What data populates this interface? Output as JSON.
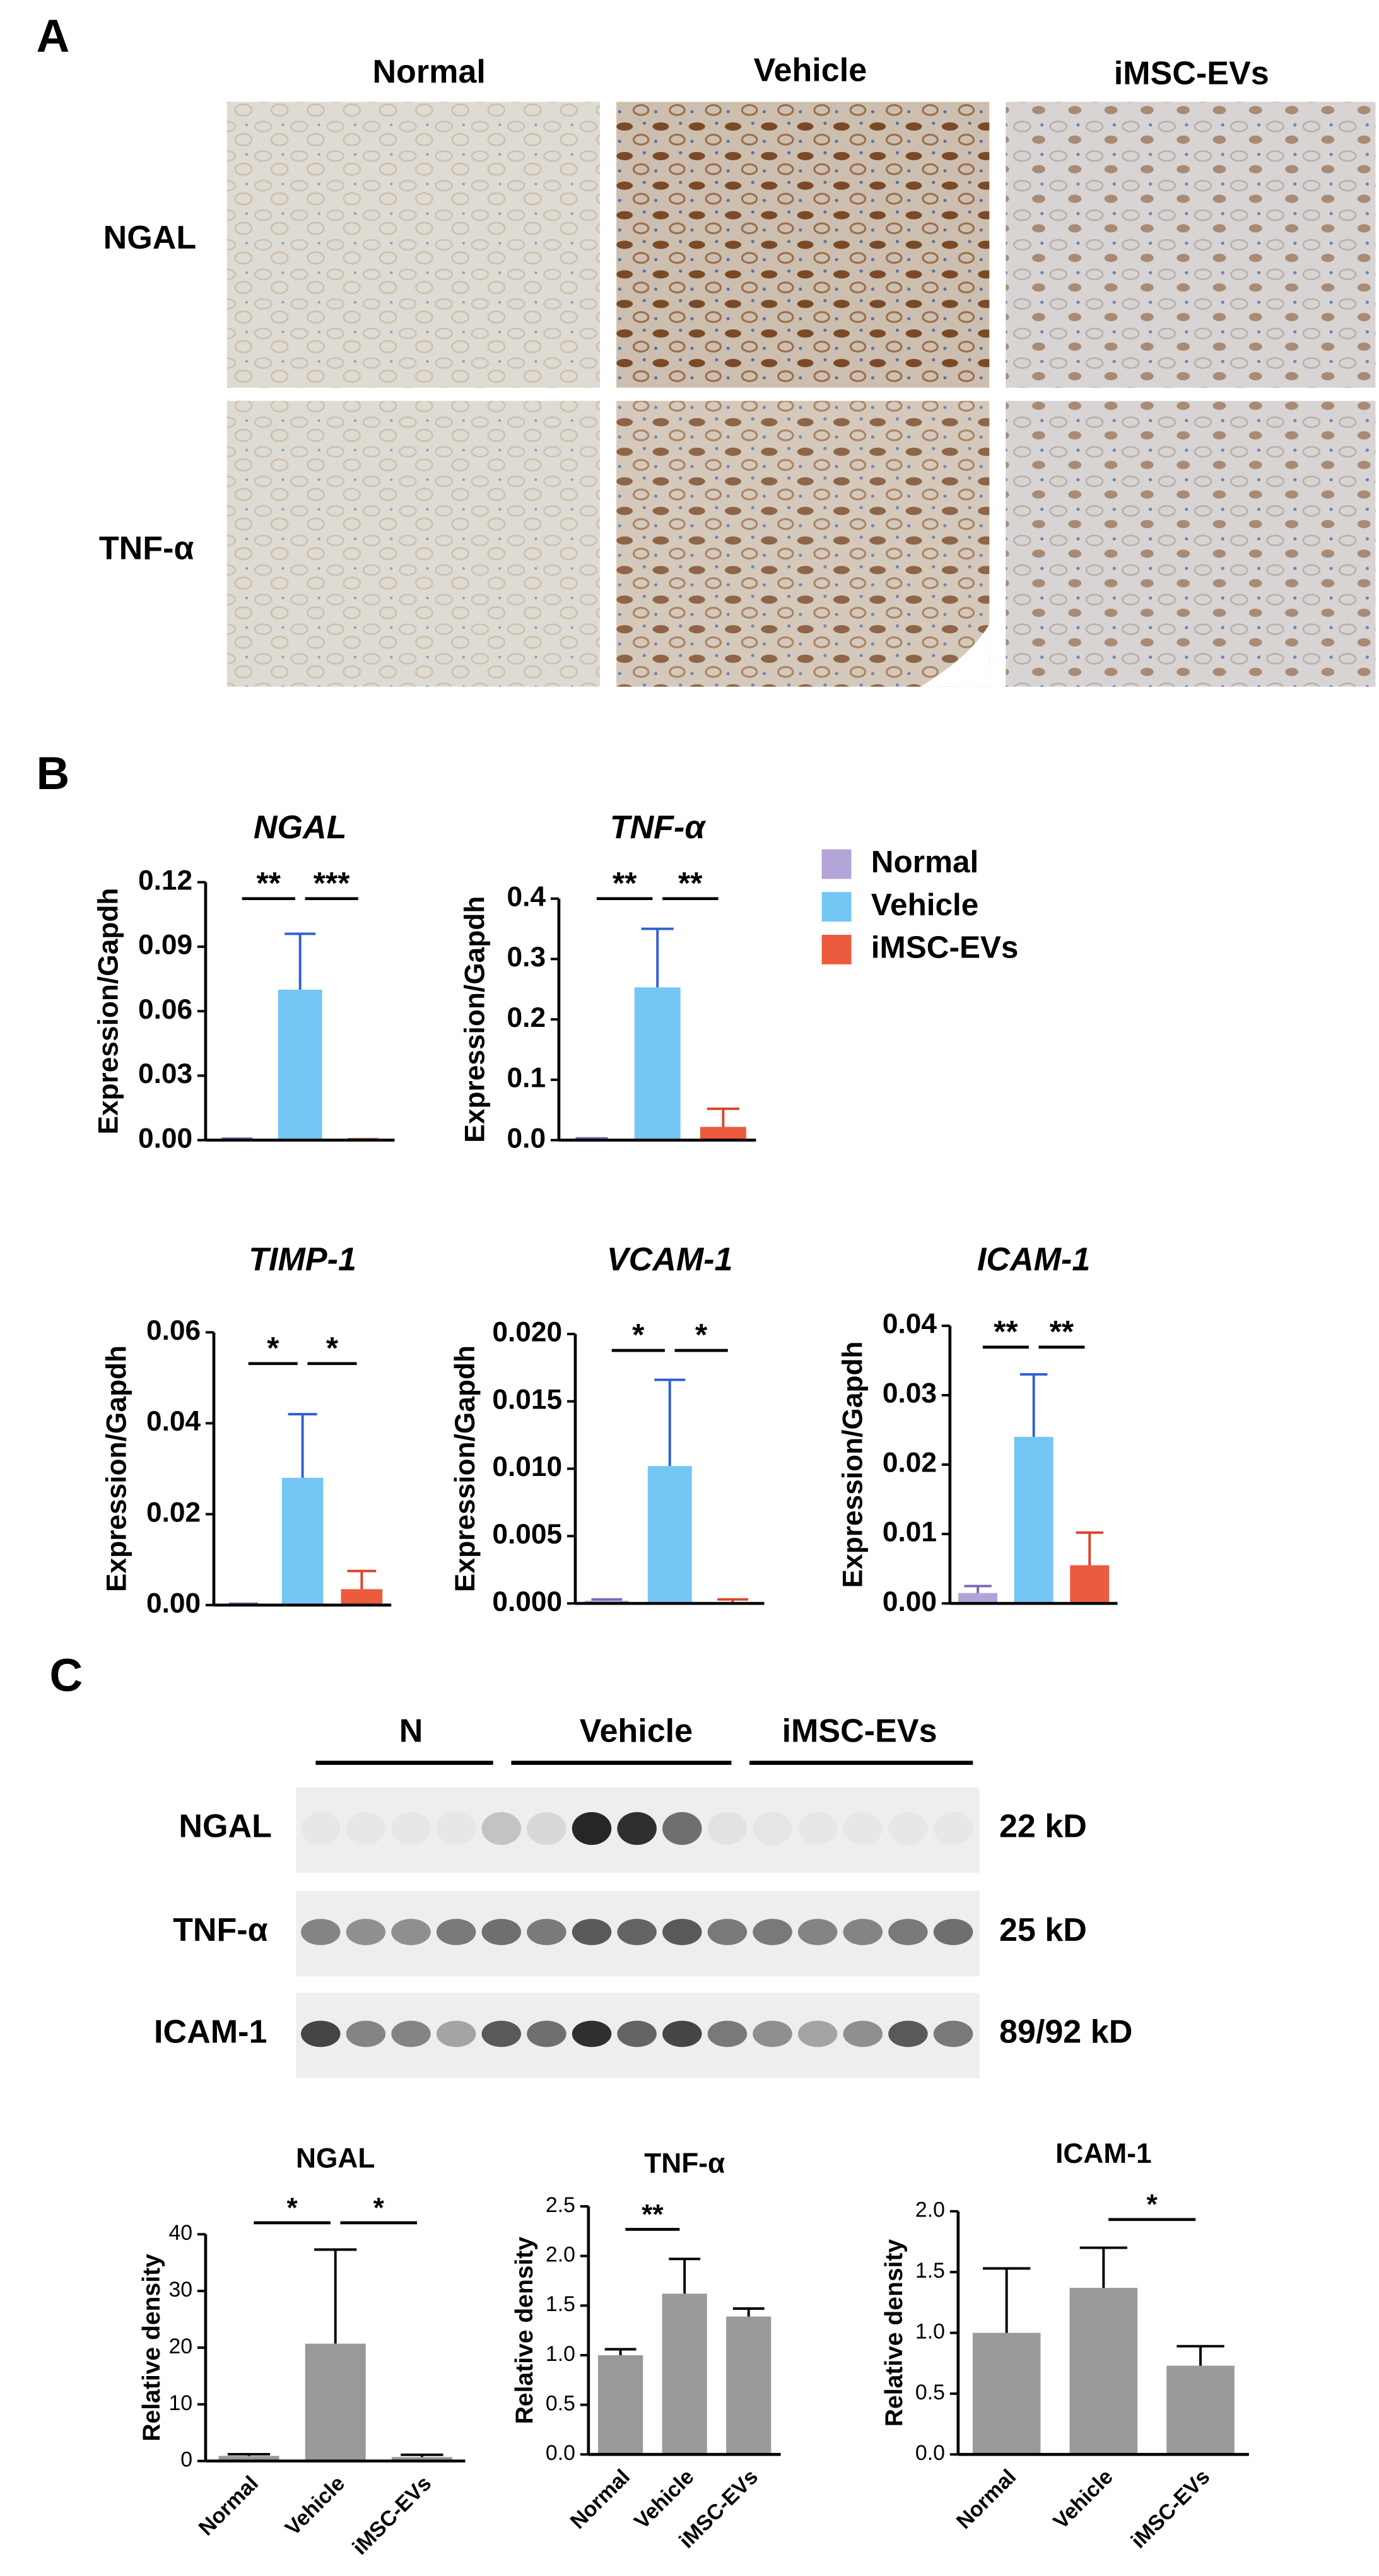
{
  "panel_labels": [
    "A",
    "B",
    "C"
  ],
  "panel_a": {
    "columns": [
      "Normal",
      "Vehicle",
      "iMSC-EVs"
    ],
    "rows": [
      "NGAL",
      "TNF-α"
    ]
  },
  "legend": [
    {
      "name": "Normal",
      "color": "#b3a4d8"
    },
    {
      "name": "Vehicle",
      "color": "#74c6f4"
    },
    {
      "name": "iMSC-EVs",
      "color": "#ec5b3e"
    }
  ],
  "blot": {
    "groups": [
      "N",
      "Vehicle",
      "iMSC-EVs"
    ],
    "rows": [
      {
        "label": "NGAL",
        "size": "22 kD"
      },
      {
        "label": "TNF-α",
        "size": "25 kD"
      },
      {
        "label": "ICAM-1",
        "size": "89/92 kD"
      }
    ]
  },
  "chart_data": [
    {
      "type": "bar",
      "title": "NGAL",
      "title_style": "italic",
      "ylabel": "Expression/Gapdh",
      "values": [
        0.0005,
        0.07,
        0.0003
      ],
      "errors": [
        0.0002,
        0.026,
        0.0001
      ],
      "colors": [
        "#b3a4d8",
        "#74c6f4",
        "#ec5b3e"
      ],
      "error_colors": [
        "#7b68b8",
        "#2f5fd6",
        "#d9452a"
      ],
      "ylim": [
        0,
        0.12
      ],
      "yticks": [
        {
          "value": 0,
          "label": "0.00"
        },
        {
          "value": 0.03,
          "label": "0.03"
        },
        {
          "value": 0.06,
          "label": "0.06"
        },
        {
          "value": 0.09,
          "label": "0.09"
        },
        {
          "value": 0.12,
          "label": "0.12"
        }
      ],
      "annotations": [
        {
          "label": "**",
          "from": 0,
          "to": 1
        },
        {
          "label": "***",
          "from": 1,
          "to": 2
        }
      ]
    },
    {
      "type": "bar",
      "title": "TNF-α",
      "title_style": "italic",
      "ylabel": "Expression/Gapdh",
      "values": [
        0.002,
        0.253,
        0.022
      ],
      "errors": [
        0.001,
        0.097,
        0.03
      ],
      "colors": [
        "#b3a4d8",
        "#74c6f4",
        "#ec5b3e"
      ],
      "error_colors": [
        "#7b68b8",
        "#2f5fd6",
        "#d9452a"
      ],
      "ylim": [
        0,
        0.4
      ],
      "yticks": [
        {
          "value": 0,
          "label": "0.0"
        },
        0.1,
        0.2,
        0.3,
        0.4
      ],
      "annotations": [
        {
          "label": "**",
          "from": 0,
          "to": 1
        },
        {
          "label": "**",
          "from": 1,
          "to": 2
        }
      ]
    },
    {
      "type": "bar",
      "title": "TIMP-1",
      "title_style": "italic",
      "ylabel": "Expression/Gapdh",
      "values": [
        0.0002,
        0.028,
        0.0035
      ],
      "errors": [
        0.0001,
        0.014,
        0.004
      ],
      "colors": [
        "#b3a4d8",
        "#74c6f4",
        "#ec5b3e"
      ],
      "error_colors": [
        "#7b68b8",
        "#2f5fd6",
        "#d9452a"
      ],
      "ylim": [
        0,
        0.06
      ],
      "yticks": [
        {
          "value": 0,
          "label": "0.00"
        },
        0.02,
        0.04,
        0.06
      ],
      "annotations": [
        {
          "label": "*",
          "from": 0,
          "to": 1
        },
        {
          "label": "*",
          "from": 1,
          "to": 2
        }
      ]
    },
    {
      "type": "bar",
      "title": "VCAM-1",
      "title_style": "italic",
      "ylabel": "Expression/Gapdh",
      "values": [
        0.0002,
        0.0102,
        0.0001
      ],
      "errors": [
        0.0001,
        0.0064,
        0.0002
      ],
      "colors": [
        "#b3a4d8",
        "#74c6f4",
        "#ec5b3e"
      ],
      "error_colors": [
        "#7b68b8",
        "#2f5fd6",
        "#d9452a"
      ],
      "ylim": [
        0,
        0.02
      ],
      "yticks": [
        {
          "value": 0,
          "label": "0.000"
        },
        0.005,
        {
          "value": 0.01,
          "label": "0.010"
        },
        0.015,
        {
          "value": 0.02,
          "label": "0.020"
        }
      ],
      "annotations": [
        {
          "label": "*",
          "from": 0,
          "to": 1
        },
        {
          "label": "*",
          "from": 1,
          "to": 2
        }
      ]
    },
    {
      "type": "bar",
      "title": "ICAM-1",
      "title_style": "italic",
      "ylabel": "Expression/Gapdh",
      "values": [
        0.0015,
        0.024,
        0.0055
      ],
      "errors": [
        0.001,
        0.009,
        0.0047
      ],
      "colors": [
        "#b3a4d8",
        "#74c6f4",
        "#ec5b3e"
      ],
      "error_colors": [
        "#7b68b8",
        "#2f5fd6",
        "#d9452a"
      ],
      "ylim": [
        0,
        0.04
      ],
      "yticks": [
        {
          "value": 0,
          "label": "0.00"
        },
        0.01,
        0.02,
        0.03,
        0.04
      ],
      "annotations": [
        {
          "label": "**",
          "from": 0,
          "to": 1
        },
        {
          "label": "**",
          "from": 1,
          "to": 2
        }
      ]
    },
    {
      "type": "bar",
      "title": "NGAL",
      "ylabel": "Relative density",
      "categories": [
        "Normal",
        "Vehicle",
        "iMSC-EVs"
      ],
      "values": [
        0.9,
        20.7,
        0.7
      ],
      "errors": [
        0.3,
        16.6,
        0.4
      ],
      "color": "#999999",
      "ylim": [
        0,
        40
      ],
      "yticks": [
        0,
        10,
        20,
        30,
        40
      ],
      "annotations": [
        {
          "label": "*",
          "from": 0,
          "to": 1
        },
        {
          "label": "*",
          "from": 1,
          "to": 2
        }
      ]
    },
    {
      "type": "bar",
      "title": "TNF-α",
      "ylabel": "Relative density",
      "categories": [
        "Normal",
        "Vehicle",
        "iMSC-EVs"
      ],
      "values": [
        1.0,
        1.62,
        1.39
      ],
      "errors": [
        0.06,
        0.35,
        0.08
      ],
      "color": "#999999",
      "ylim": [
        0,
        2.5
      ],
      "yticks": [
        {
          "value": 0,
          "label": "0.0"
        },
        0.5,
        {
          "value": 1,
          "label": "1.0"
        },
        1.5,
        {
          "value": 2,
          "label": "2.0"
        },
        2.5
      ],
      "annotations": [
        {
          "label": "**",
          "from": 0,
          "to": 1
        }
      ]
    },
    {
      "type": "bar",
      "title": "ICAM-1",
      "ylabel": "Relative density",
      "categories": [
        "Normal",
        "Vehicle",
        "iMSC-EVs"
      ],
      "values": [
        1.0,
        1.37,
        0.73
      ],
      "errors": [
        0.53,
        0.33,
        0.16
      ],
      "color": "#999999",
      "ylim": [
        0,
        2.0
      ],
      "yticks": [
        {
          "value": 0,
          "label": "0.0"
        },
        0.5,
        {
          "value": 1,
          "label": "1.0"
        },
        1.5,
        {
          "value": 2,
          "label": "2.0"
        }
      ],
      "annotations": [
        {
          "label": "*",
          "from": 1,
          "to": 2
        }
      ]
    }
  ]
}
